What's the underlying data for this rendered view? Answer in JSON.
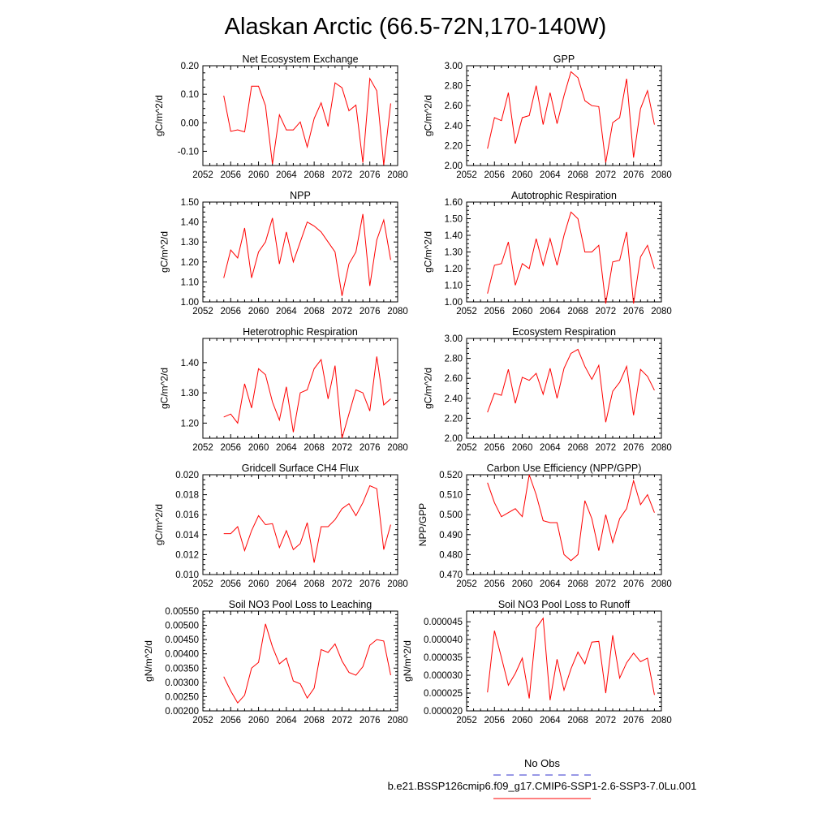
{
  "figure": {
    "title": "Alaskan Arctic (66.5-72N,170-140W)",
    "legend": [
      {
        "label": "No Obs",
        "color": "#3333cc",
        "dash": "dashed"
      },
      {
        "label": "b.e21.BSSP126cmip6.f09_g17.CMIP6-SSP1-2.6-SSP3-7.0Lu.001",
        "color": "#ff0000",
        "dash": "solid"
      }
    ]
  },
  "chart_data": [
    {
      "type": "line",
      "title": "Net Ecosystem Exchange",
      "ylabel": "gC/m^2/d",
      "xlim": [
        2052,
        2080
      ],
      "xticks": [
        2052,
        2056,
        2060,
        2064,
        2068,
        2072,
        2076,
        2080
      ],
      "ylim": [
        -0.15,
        0.2
      ],
      "yticks": [
        -0.1,
        0.0,
        0.1,
        0.2
      ],
      "ytick_labels": [
        "-0.10",
        "0.00",
        "0.10",
        "0.20"
      ],
      "series": [
        {
          "color": "#ff0000",
          "x": [
            2055,
            2056,
            2057,
            2058,
            2059,
            2060,
            2061,
            2062,
            2063,
            2064,
            2065,
            2066,
            2067,
            2068,
            2069,
            2070,
            2071,
            2072,
            2073,
            2074,
            2075,
            2076,
            2077,
            2078,
            2079
          ],
          "y": [
            0.095,
            -0.03,
            -0.025,
            -0.032,
            0.128,
            0.128,
            0.06,
            -0.145,
            0.028,
            -0.025,
            -0.025,
            0.003,
            -0.085,
            0.015,
            0.07,
            -0.013,
            0.14,
            0.123,
            0.042,
            0.062,
            -0.14,
            0.155,
            0.112,
            -0.148,
            0.068
          ]
        }
      ]
    },
    {
      "type": "line",
      "title": "GPP",
      "ylabel": "gC/m^2/d",
      "xlim": [
        2052,
        2080
      ],
      "xticks": [
        2052,
        2056,
        2060,
        2064,
        2068,
        2072,
        2076,
        2080
      ],
      "ylim": [
        2.0,
        3.0
      ],
      "yticks": [
        2.0,
        2.2,
        2.4,
        2.6,
        2.8,
        3.0
      ],
      "ytick_labels": [
        "2.00",
        "2.20",
        "2.40",
        "2.60",
        "2.80",
        "3.00"
      ],
      "series": [
        {
          "color": "#ff0000",
          "x": [
            2055,
            2056,
            2057,
            2058,
            2059,
            2060,
            2061,
            2062,
            2063,
            2064,
            2065,
            2066,
            2067,
            2068,
            2069,
            2070,
            2071,
            2072,
            2073,
            2074,
            2075,
            2076,
            2077,
            2078,
            2079
          ],
          "y": [
            2.17,
            2.48,
            2.45,
            2.73,
            2.22,
            2.48,
            2.5,
            2.8,
            2.41,
            2.73,
            2.42,
            2.7,
            2.94,
            2.88,
            2.65,
            2.6,
            2.59,
            2.03,
            2.43,
            2.48,
            2.87,
            2.08,
            2.57,
            2.75,
            2.41
          ]
        }
      ]
    },
    {
      "type": "line",
      "title": "NPP",
      "ylabel": "gC/m^2/d",
      "xlim": [
        2052,
        2080
      ],
      "xticks": [
        2052,
        2056,
        2060,
        2064,
        2068,
        2072,
        2076,
        2080
      ],
      "ylim": [
        1.0,
        1.5
      ],
      "yticks": [
        1.0,
        1.1,
        1.2,
        1.3,
        1.4,
        1.5
      ],
      "ytick_labels": [
        "1.00",
        "1.10",
        "1.20",
        "1.30",
        "1.40",
        "1.50"
      ],
      "series": [
        {
          "color": "#ff0000",
          "x": [
            2055,
            2056,
            2057,
            2058,
            2059,
            2060,
            2061,
            2062,
            2063,
            2064,
            2065,
            2066,
            2067,
            2068,
            2069,
            2070,
            2071,
            2072,
            2073,
            2074,
            2075,
            2076,
            2077,
            2078,
            2079
          ],
          "y": [
            1.12,
            1.26,
            1.22,
            1.37,
            1.12,
            1.25,
            1.3,
            1.42,
            1.19,
            1.35,
            1.2,
            1.3,
            1.4,
            1.38,
            1.35,
            1.3,
            1.25,
            1.03,
            1.19,
            1.25,
            1.44,
            1.08,
            1.31,
            1.41,
            1.21
          ]
        }
      ]
    },
    {
      "type": "line",
      "title": "Autotrophic Respiration",
      "ylabel": "gC/m^2/d",
      "xlim": [
        2052,
        2080
      ],
      "xticks": [
        2052,
        2056,
        2060,
        2064,
        2068,
        2072,
        2076,
        2080
      ],
      "ylim": [
        1.0,
        1.6
      ],
      "yticks": [
        1.0,
        1.1,
        1.2,
        1.3,
        1.4,
        1.5,
        1.6
      ],
      "ytick_labels": [
        "1.00",
        "1.10",
        "1.20",
        "1.30",
        "1.40",
        "1.50",
        "1.60"
      ],
      "series": [
        {
          "color": "#ff0000",
          "x": [
            2055,
            2056,
            2057,
            2058,
            2059,
            2060,
            2061,
            2062,
            2063,
            2064,
            2065,
            2066,
            2067,
            2068,
            2069,
            2070,
            2071,
            2072,
            2073,
            2074,
            2075,
            2076,
            2077,
            2078,
            2079
          ],
          "y": [
            1.05,
            1.22,
            1.23,
            1.36,
            1.1,
            1.23,
            1.2,
            1.38,
            1.22,
            1.38,
            1.22,
            1.4,
            1.54,
            1.5,
            1.3,
            1.3,
            1.34,
            0.99,
            1.24,
            1.25,
            1.42,
            0.99,
            1.27,
            1.34,
            1.2
          ]
        }
      ]
    },
    {
      "type": "line",
      "title": "Heterotrophic Respiration",
      "ylabel": "gC/m^2/d",
      "xlim": [
        2052,
        2080
      ],
      "xticks": [
        2052,
        2056,
        2060,
        2064,
        2068,
        2072,
        2076,
        2080
      ],
      "ylim": [
        1.15,
        1.48
      ],
      "yticks": [
        1.2,
        1.3,
        1.4
      ],
      "ytick_labels": [
        "1.20",
        "1.30",
        "1.40"
      ],
      "series": [
        {
          "color": "#ff0000",
          "x": [
            2055,
            2056,
            2057,
            2058,
            2059,
            2060,
            2061,
            2062,
            2063,
            2064,
            2065,
            2066,
            2067,
            2068,
            2069,
            2070,
            2071,
            2072,
            2073,
            2074,
            2075,
            2076,
            2077,
            2078,
            2079
          ],
          "y": [
            1.22,
            1.23,
            1.2,
            1.33,
            1.25,
            1.38,
            1.36,
            1.27,
            1.21,
            1.32,
            1.17,
            1.3,
            1.31,
            1.38,
            1.41,
            1.28,
            1.39,
            1.15,
            1.23,
            1.31,
            1.3,
            1.24,
            1.42,
            1.26,
            1.28
          ]
        }
      ]
    },
    {
      "type": "line",
      "title": "Ecosystem Respiration",
      "ylabel": "gC/m^2/d",
      "xlim": [
        2052,
        2080
      ],
      "xticks": [
        2052,
        2056,
        2060,
        2064,
        2068,
        2072,
        2076,
        2080
      ],
      "ylim": [
        2.0,
        3.0
      ],
      "yticks": [
        2.0,
        2.2,
        2.4,
        2.6,
        2.8,
        3.0
      ],
      "ytick_labels": [
        "2.00",
        "2.20",
        "2.40",
        "2.60",
        "2.80",
        "3.00"
      ],
      "series": [
        {
          "color": "#ff0000",
          "x": [
            2055,
            2056,
            2057,
            2058,
            2059,
            2060,
            2061,
            2062,
            2063,
            2064,
            2065,
            2066,
            2067,
            2068,
            2069,
            2070,
            2071,
            2072,
            2073,
            2074,
            2075,
            2076,
            2077,
            2078,
            2079
          ],
          "y": [
            2.26,
            2.45,
            2.43,
            2.69,
            2.35,
            2.61,
            2.58,
            2.65,
            2.44,
            2.7,
            2.4,
            2.7,
            2.85,
            2.89,
            2.72,
            2.59,
            2.73,
            2.16,
            2.47,
            2.56,
            2.72,
            2.23,
            2.69,
            2.62,
            2.48
          ]
        }
      ]
    },
    {
      "type": "line",
      "title": "Gridcell Surface CH4 Flux",
      "ylabel": "gC/m^2/d",
      "xlim": [
        2052,
        2080
      ],
      "xticks": [
        2052,
        2056,
        2060,
        2064,
        2068,
        2072,
        2076,
        2080
      ],
      "ylim": [
        0.01,
        0.02
      ],
      "yticks": [
        0.01,
        0.012,
        0.014,
        0.016,
        0.018,
        0.02
      ],
      "ytick_labels": [
        "0.010",
        "0.012",
        "0.014",
        "0.016",
        "0.018",
        "0.020"
      ],
      "series": [
        {
          "color": "#ff0000",
          "x": [
            2055,
            2056,
            2057,
            2058,
            2059,
            2060,
            2061,
            2062,
            2063,
            2064,
            2065,
            2066,
            2067,
            2068,
            2069,
            2070,
            2071,
            2072,
            2073,
            2074,
            2075,
            2076,
            2077,
            2078,
            2079
          ],
          "y": [
            0.0141,
            0.0141,
            0.0148,
            0.0124,
            0.0144,
            0.0159,
            0.015,
            0.0151,
            0.0127,
            0.0144,
            0.0125,
            0.0131,
            0.0152,
            0.0112,
            0.0148,
            0.0148,
            0.0155,
            0.0166,
            0.0171,
            0.0159,
            0.0172,
            0.0189,
            0.0186,
            0.0125,
            0.015
          ]
        }
      ]
    },
    {
      "type": "line",
      "title": "Carbon Use Efficiency (NPP/GPP)",
      "ylabel": "NPP/GPP",
      "xlim": [
        2052,
        2080
      ],
      "xticks": [
        2052,
        2056,
        2060,
        2064,
        2068,
        2072,
        2076,
        2080
      ],
      "ylim": [
        0.47,
        0.52
      ],
      "yticks": [
        0.47,
        0.48,
        0.49,
        0.5,
        0.51,
        0.52
      ],
      "ytick_labels": [
        "0.470",
        "0.480",
        "0.490",
        "0.500",
        "0.510",
        "0.520"
      ],
      "series": [
        {
          "color": "#ff0000",
          "x": [
            2055,
            2056,
            2057,
            2058,
            2059,
            2060,
            2061,
            2062,
            2063,
            2064,
            2065,
            2066,
            2067,
            2068,
            2069,
            2070,
            2071,
            2072,
            2073,
            2074,
            2075,
            2076,
            2077,
            2078,
            2079
          ],
          "y": [
            0.516,
            0.506,
            0.499,
            0.501,
            0.503,
            0.499,
            0.52,
            0.51,
            0.497,
            0.496,
            0.496,
            0.48,
            0.477,
            0.48,
            0.507,
            0.498,
            0.482,
            0.5,
            0.486,
            0.498,
            0.503,
            0.517,
            0.505,
            0.51,
            0.501
          ]
        }
      ]
    },
    {
      "type": "line",
      "title": "Soil NO3 Pool Loss to Leaching",
      "ylabel": "gN/m^2/d",
      "xlim": [
        2052,
        2080
      ],
      "xticks": [
        2052,
        2056,
        2060,
        2064,
        2068,
        2072,
        2076,
        2080
      ],
      "ylim": [
        0.002,
        0.0055
      ],
      "yticks": [
        0.002,
        0.0025,
        0.003,
        0.0035,
        0.004,
        0.0045,
        0.005,
        0.0055
      ],
      "ytick_labels": [
        "0.00200",
        "0.00250",
        "0.00300",
        "0.00350",
        "0.00400",
        "0.00450",
        "0.00500",
        "0.00550"
      ],
      "series": [
        {
          "color": "#ff0000",
          "x": [
            2055,
            2056,
            2057,
            2058,
            2059,
            2060,
            2061,
            2062,
            2063,
            2064,
            2065,
            2066,
            2067,
            2068,
            2069,
            2070,
            2071,
            2072,
            2073,
            2074,
            2075,
            2076,
            2077,
            2078,
            2079
          ],
          "y": [
            0.0032,
            0.0027,
            0.00228,
            0.00255,
            0.0035,
            0.0037,
            0.00505,
            0.00425,
            0.00365,
            0.00385,
            0.00305,
            0.00295,
            0.00245,
            0.0028,
            0.00415,
            0.00405,
            0.00435,
            0.00375,
            0.00335,
            0.00325,
            0.00355,
            0.0043,
            0.0045,
            0.00445,
            0.00325
          ]
        }
      ]
    },
    {
      "type": "line",
      "title": "Soil NO3 Pool Loss to Runoff",
      "ylabel": "gN/m^2/d",
      "xlim": [
        2052,
        2080
      ],
      "xticks": [
        2052,
        2056,
        2060,
        2064,
        2068,
        2072,
        2076,
        2080
      ],
      "ylim": [
        2e-05,
        4.8e-05
      ],
      "yticks": [
        2e-05,
        2.5e-05,
        3e-05,
        3.5e-05,
        4e-05,
        4.5e-05
      ],
      "ytick_labels": [
        "0.000020",
        "0.000025",
        "0.000030",
        "0.000035",
        "0.000040",
        "0.000045"
      ],
      "series": [
        {
          "color": "#ff0000",
          "x": [
            2055,
            2056,
            2057,
            2058,
            2059,
            2060,
            2061,
            2062,
            2063,
            2064,
            2065,
            2066,
            2067,
            2068,
            2069,
            2070,
            2071,
            2072,
            2073,
            2074,
            2075,
            2076,
            2077,
            2078,
            2079
          ],
          "y": [
            2.52e-05,
            4.25e-05,
            3.5e-05,
            2.72e-05,
            3.05e-05,
            3.48e-05,
            2.35e-05,
            4.32e-05,
            4.6e-05,
            2.3e-05,
            3.45e-05,
            2.58e-05,
            3.18e-05,
            3.65e-05,
            3.32e-05,
            3.93e-05,
            3.95e-05,
            2.5e-05,
            4.12e-05,
            2.92e-05,
            3.35e-05,
            3.62e-05,
            3.38e-05,
            3.48e-05,
            2.45e-05
          ]
        }
      ]
    }
  ]
}
